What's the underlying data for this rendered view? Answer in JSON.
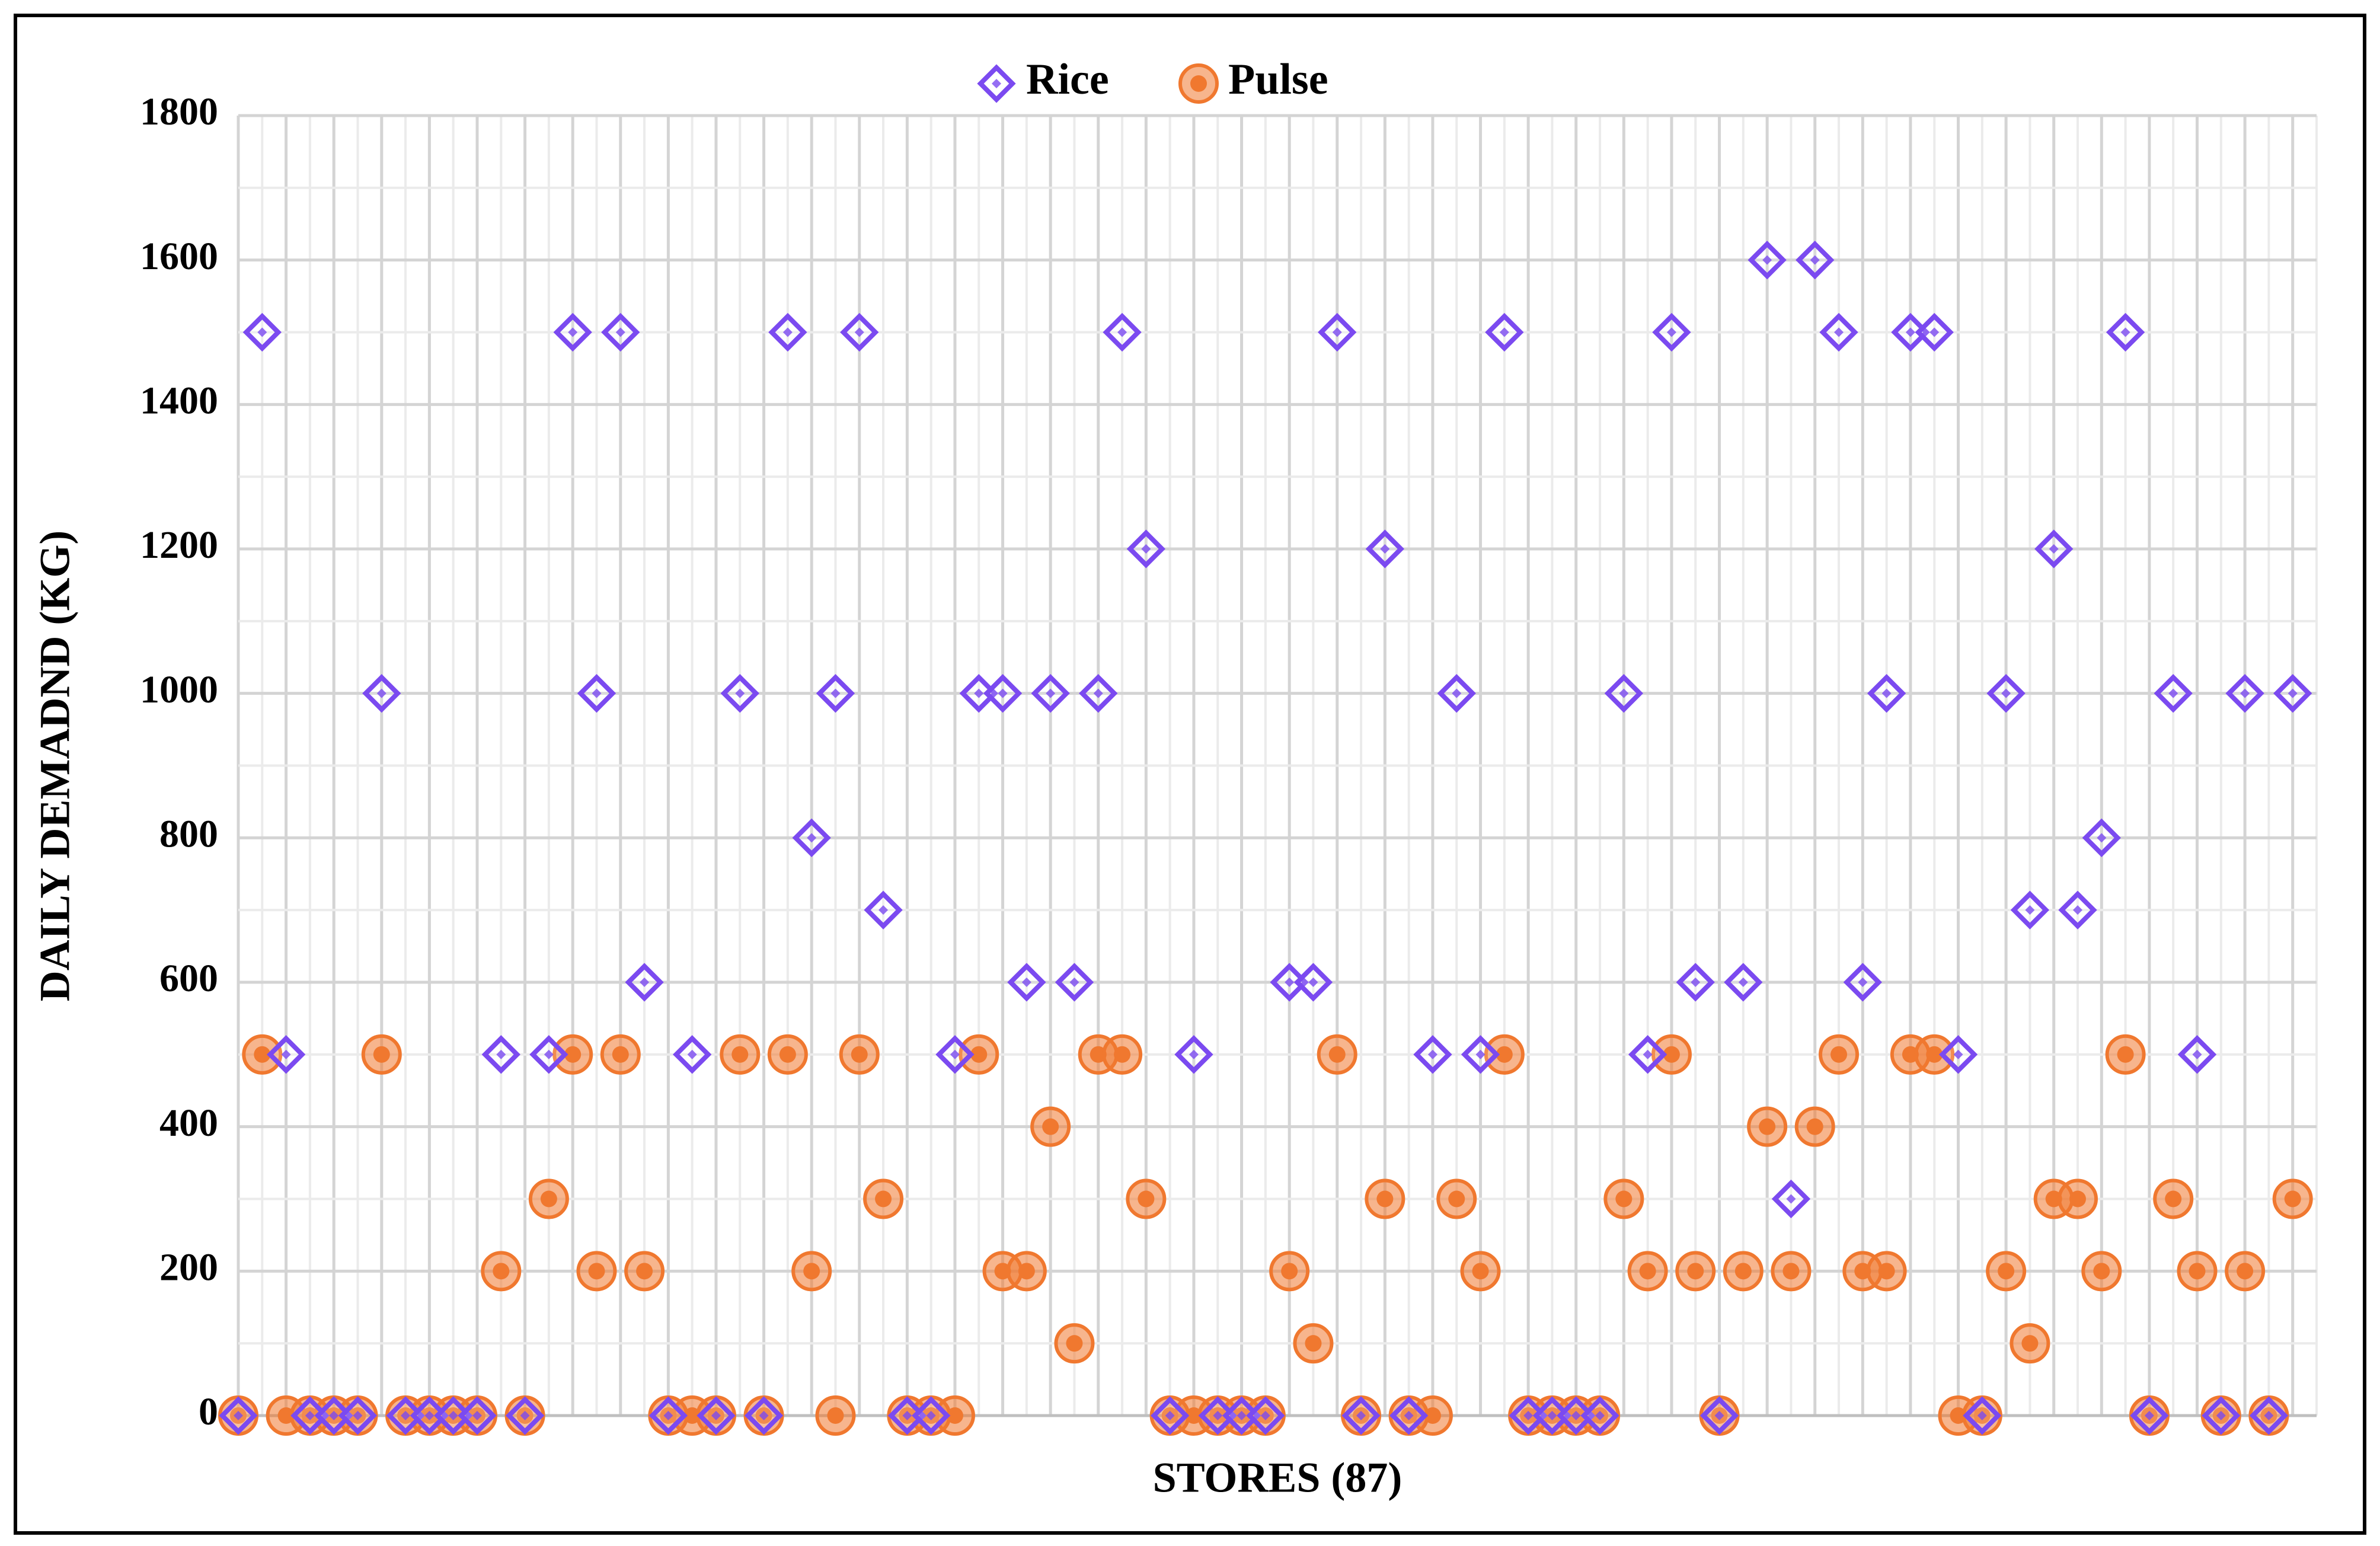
{
  "chart_data": {
    "type": "scatter",
    "x_label": "STORES (87)",
    "y_label": "DAILY DEMADND (KG)",
    "x": [
      1,
      2,
      3,
      4,
      5,
      6,
      7,
      8,
      9,
      10,
      11,
      12,
      13,
      14,
      15,
      16,
      17,
      18,
      19,
      20,
      21,
      22,
      23,
      24,
      25,
      26,
      27,
      28,
      29,
      30,
      31,
      32,
      33,
      34,
      35,
      36,
      37,
      38,
      39,
      40,
      41,
      42,
      43,
      44,
      45,
      46,
      47,
      48,
      49,
      50,
      51,
      52,
      53,
      54,
      55,
      56,
      57,
      58,
      59,
      60,
      61,
      62,
      63,
      64,
      65,
      66,
      67,
      68,
      69,
      70,
      71,
      72,
      73,
      74,
      75,
      76,
      77,
      78,
      79,
      80,
      81,
      82,
      83,
      84,
      85,
      86,
      87
    ],
    "xlim": [
      1,
      88
    ],
    "ylim": [
      0,
      1800
    ],
    "yticks": [
      0,
      200,
      400,
      600,
      800,
      1000,
      1200,
      1400,
      1600,
      1800
    ],
    "grid": true,
    "legend": "top",
    "series": [
      {
        "name": "Rice",
        "color": "#7b4af0",
        "marker": "diamond",
        "values": [
          0,
          1500,
          500,
          0,
          0,
          0,
          1000,
          0,
          0,
          0,
          0,
          500,
          0,
          500,
          1500,
          1000,
          1500,
          600,
          0,
          500,
          0,
          1000,
          0,
          1500,
          800,
          1000,
          1500,
          700,
          0,
          0,
          500,
          1000,
          1000,
          600,
          1000,
          600,
          1000,
          1500,
          1200,
          0,
          500,
          0,
          0,
          0,
          600,
          600,
          1500,
          0,
          1200,
          0,
          500,
          1000,
          500,
          1500,
          0,
          0,
          0,
          0,
          1000,
          500,
          1500,
          600,
          0,
          600,
          1600,
          300,
          1600,
          1500,
          600,
          1000,
          1500,
          1500,
          500,
          0,
          1000,
          700,
          1200,
          700,
          800,
          1500,
          0,
          1000,
          500,
          0,
          1000,
          0,
          1000
        ]
      },
      {
        "name": "Pulse",
        "color": "#f0782f",
        "marker": "circle",
        "values": [
          0,
          500,
          0,
          0,
          0,
          0,
          500,
          0,
          0,
          0,
          0,
          200,
          0,
          300,
          500,
          200,
          500,
          200,
          0,
          0,
          0,
          500,
          0,
          500,
          200,
          0,
          500,
          300,
          0,
          0,
          0,
          500,
          200,
          200,
          400,
          100,
          500,
          500,
          300,
          0,
          0,
          0,
          0,
          0,
          200,
          100,
          500,
          0,
          300,
          0,
          0,
          300,
          200,
          500,
          0,
          0,
          0,
          0,
          300,
          200,
          500,
          200,
          0,
          200,
          400,
          200,
          400,
          500,
          200,
          200,
          500,
          500,
          0,
          0,
          200,
          100,
          300,
          300,
          200,
          500,
          0,
          300,
          200,
          0,
          200,
          0,
          300
        ]
      }
    ]
  }
}
